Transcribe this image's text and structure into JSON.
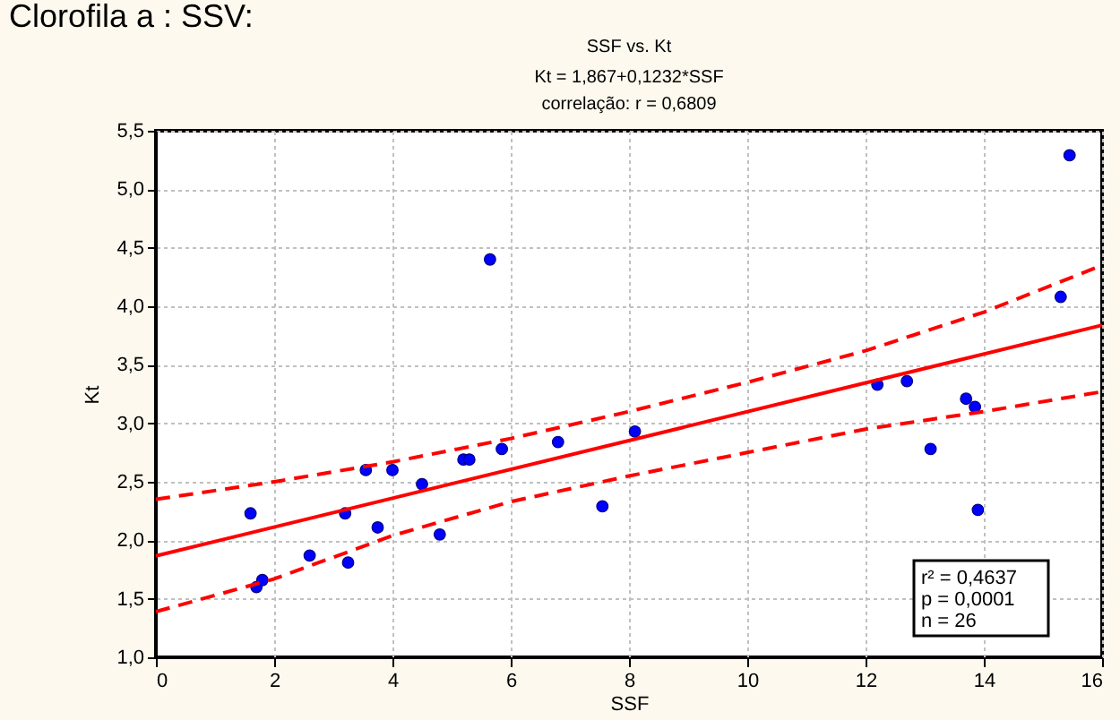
{
  "chart_data": {
    "type": "scatter",
    "title": "SSF vs. Kt",
    "subtitle": [
      "Kt = 1,867+0,1232*SSF",
      "correlação: r = 0,6809"
    ],
    "xlabel": "SSF",
    "ylabel": "Kt",
    "annotations": [
      "Clorofila a : SSV:",
      "r² = 0,4637",
      "p = 0,0001",
      "n = 26"
    ],
    "xlim": [
      0,
      16
    ],
    "xticks": [
      0,
      2,
      4,
      6,
      8,
      10,
      12,
      14,
      16
    ],
    "ylim": [
      1.0,
      5.5
    ],
    "yticks": [
      {
        "value": 1.0,
        "label": "1,0"
      },
      {
        "value": 1.5,
        "label": "1,5"
      },
      {
        "value": 2.0,
        "label": "2,0"
      },
      {
        "value": 2.5,
        "label": "2,5"
      },
      {
        "value": 3.0,
        "label": "3,0"
      },
      {
        "value": 3.5,
        "label": "3,5"
      },
      {
        "value": 4.0,
        "label": "4,0"
      },
      {
        "value": 4.5,
        "label": "4,5"
      },
      {
        "value": 5.0,
        "label": "5,0"
      },
      {
        "value": 5.5,
        "label": "5,5"
      }
    ],
    "grid": true,
    "marker": "circle",
    "series": [
      {
        "type": "scatter",
        "color": "#0000ff",
        "x": [
          1.6,
          1.7,
          1.8,
          2.6,
          3.2,
          3.25,
          3.55,
          3.75,
          4.0,
          4.5,
          4.8,
          5.2,
          5.3,
          5.65,
          5.85,
          6.8,
          7.55,
          8.1,
          12.2,
          12.7,
          13.1,
          13.7,
          13.85,
          13.9,
          15.3,
          15.45
        ],
        "values": [
          2.23,
          1.6,
          1.66,
          1.87,
          2.23,
          1.81,
          2.6,
          2.11,
          2.6,
          2.48,
          2.05,
          2.69,
          2.69,
          4.4,
          2.78,
          2.84,
          2.29,
          2.93,
          3.33,
          3.36,
          2.78,
          3.21,
          3.14,
          2.26,
          4.08,
          5.29
        ]
      },
      {
        "type": "line",
        "color": "#ff0000",
        "line_style": "solid",
        "marker": "none",
        "x": [
          0,
          16
        ],
        "values": [
          1.867,
          3.838
        ]
      },
      {
        "type": "line",
        "color": "#ff0000",
        "line_style": "dashed",
        "marker": "none",
        "x": [
          0,
          2,
          4,
          6,
          8,
          10,
          12,
          14,
          16
        ],
        "values": [
          2.35,
          2.5,
          2.67,
          2.87,
          3.1,
          3.35,
          3.62,
          3.95,
          4.35
        ]
      },
      {
        "type": "line",
        "color": "#ff0000",
        "line_style": "dashed",
        "marker": "none",
        "x": [
          0,
          2,
          4,
          6,
          8,
          10,
          12,
          14,
          16
        ],
        "values": [
          1.39,
          1.67,
          2.04,
          2.33,
          2.55,
          2.75,
          2.95,
          3.1,
          3.27
        ]
      }
    ]
  }
}
